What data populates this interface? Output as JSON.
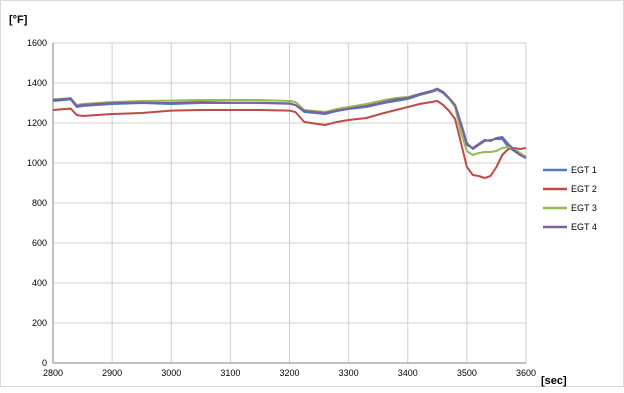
{
  "chart_data": {
    "type": "line",
    "title": "",
    "ylabel": "[°F]",
    "xlabel": "[sec]",
    "xlim": [
      2800,
      3600
    ],
    "ylim": [
      0,
      1600
    ],
    "xticks": [
      "2800",
      "2900",
      "3000",
      "3100",
      "3200",
      "3300",
      "3400",
      "3500",
      "3600"
    ],
    "yticks": [
      "0",
      "200",
      "400",
      "600",
      "800",
      "1000",
      "1200",
      "1400",
      "1600"
    ],
    "grid": true,
    "legend": "right",
    "series": [
      {
        "name": "EGT 1",
        "color": "#4a7ebb",
        "x": [
          2800,
          2820,
          2830,
          2840,
          2850,
          2900,
          2950,
          3000,
          3050,
          3100,
          3150,
          3200,
          3210,
          3225,
          3260,
          3280,
          3300,
          3330,
          3360,
          3380,
          3400,
          3420,
          3440,
          3450,
          3460,
          3470,
          3480,
          3490,
          3500,
          3510,
          3520,
          3530,
          3540,
          3550,
          3560,
          3570,
          3580,
          3590,
          3600
        ],
        "values": [
          1310,
          1315,
          1318,
          1280,
          1285,
          1295,
          1300,
          1295,
          1300,
          1300,
          1302,
          1298,
          1290,
          1255,
          1245,
          1260,
          1270,
          1280,
          1300,
          1310,
          1320,
          1340,
          1355,
          1365,
          1350,
          1320,
          1290,
          1200,
          1100,
          1070,
          1090,
          1110,
          1115,
          1120,
          1120,
          1080,
          1060,
          1040,
          1025
        ]
      },
      {
        "name": "EGT 2",
        "color": "#be4b48",
        "x": [
          2800,
          2820,
          2830,
          2840,
          2850,
          2900,
          2950,
          3000,
          3050,
          3100,
          3150,
          3200,
          3210,
          3225,
          3260,
          3280,
          3300,
          3330,
          3360,
          3380,
          3400,
          3420,
          3440,
          3450,
          3460,
          3470,
          3480,
          3490,
          3500,
          3510,
          3520,
          3530,
          3540,
          3550,
          3560,
          3570,
          3580,
          3590,
          3600
        ],
        "values": [
          1265,
          1270,
          1272,
          1240,
          1235,
          1245,
          1250,
          1262,
          1265,
          1265,
          1265,
          1262,
          1255,
          1205,
          1190,
          1205,
          1215,
          1225,
          1250,
          1265,
          1280,
          1295,
          1305,
          1310,
          1290,
          1260,
          1220,
          1100,
          980,
          940,
          935,
          925,
          935,
          980,
          1040,
          1070,
          1075,
          1070,
          1075
        ]
      },
      {
        "name": "EGT 3",
        "color": "#98b954",
        "x": [
          2800,
          2820,
          2830,
          2840,
          2850,
          2900,
          2950,
          3000,
          3050,
          3100,
          3150,
          3200,
          3210,
          3225,
          3260,
          3280,
          3300,
          3330,
          3360,
          3380,
          3400,
          3420,
          3440,
          3450,
          3460,
          3470,
          3480,
          3490,
          3500,
          3510,
          3520,
          3530,
          3540,
          3550,
          3560,
          3570,
          3580,
          3590,
          3600
        ],
        "values": [
          1318,
          1322,
          1325,
          1290,
          1295,
          1305,
          1310,
          1312,
          1315,
          1315,
          1315,
          1310,
          1305,
          1265,
          1255,
          1270,
          1280,
          1295,
          1315,
          1325,
          1330,
          1345,
          1360,
          1370,
          1355,
          1320,
          1280,
          1150,
          1060,
          1040,
          1050,
          1055,
          1055,
          1060,
          1075,
          1080,
          1070,
          1050,
          1030
        ]
      },
      {
        "name": "EGT 4",
        "color": "#7d60a0",
        "x": [
          2800,
          2820,
          2830,
          2840,
          2850,
          2900,
          2950,
          3000,
          3050,
          3100,
          3150,
          3200,
          3210,
          3225,
          3260,
          3280,
          3300,
          3330,
          3360,
          3380,
          3400,
          3420,
          3440,
          3450,
          3460,
          3470,
          3480,
          3490,
          3500,
          3510,
          3520,
          3530,
          3540,
          3550,
          3560,
          3570,
          3580,
          3590,
          3600
        ],
        "values": [
          1315,
          1320,
          1322,
          1285,
          1290,
          1300,
          1302,
          1300,
          1305,
          1302,
          1300,
          1296,
          1290,
          1260,
          1250,
          1262,
          1272,
          1285,
          1305,
          1318,
          1325,
          1345,
          1360,
          1372,
          1355,
          1325,
          1290,
          1190,
          1090,
          1075,
          1095,
          1115,
          1110,
          1125,
          1130,
          1095,
          1065,
          1040,
          1025
        ]
      }
    ]
  }
}
